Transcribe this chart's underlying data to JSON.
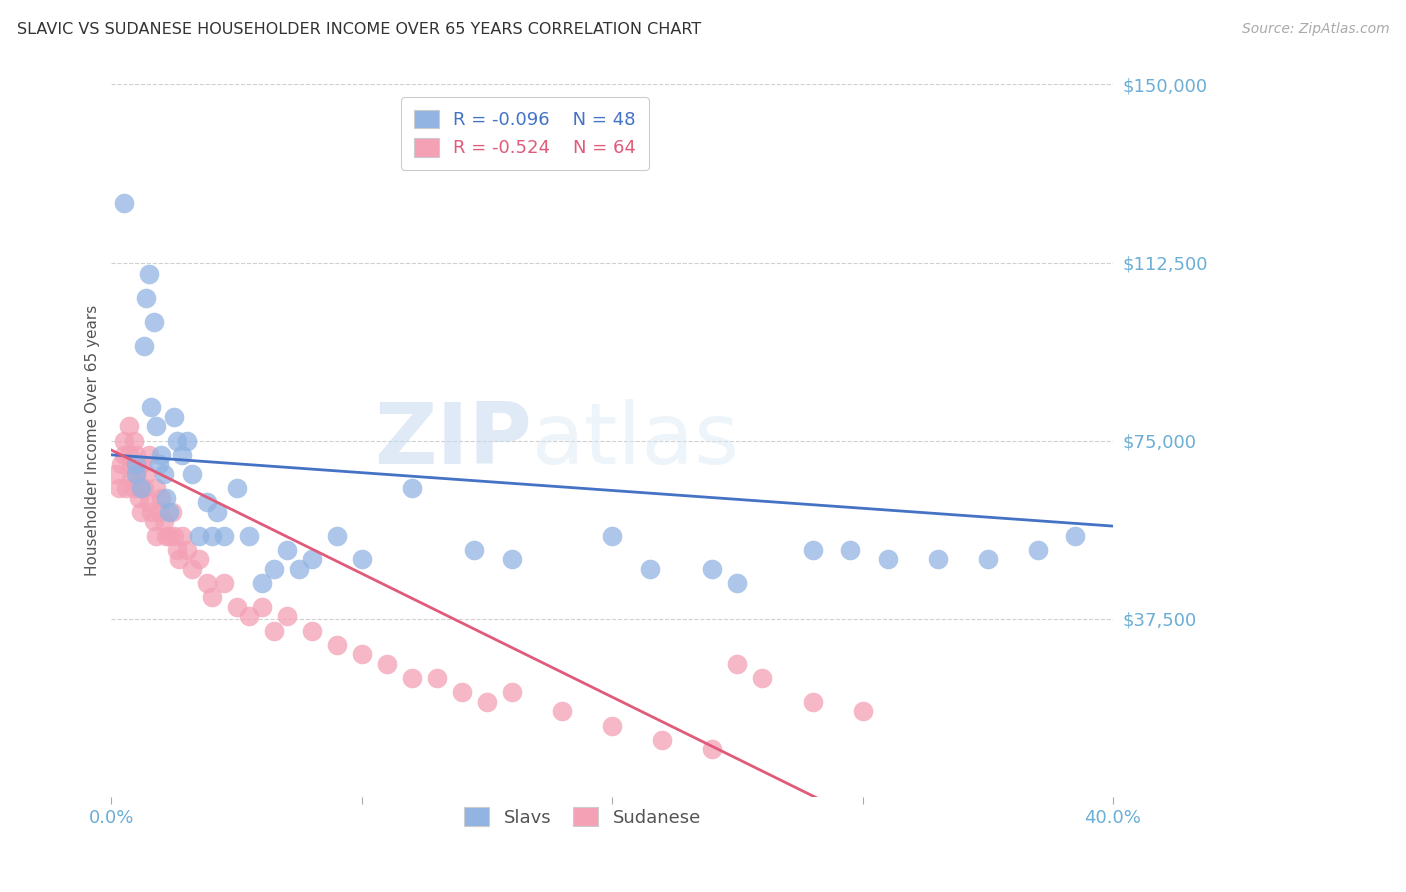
{
  "title": "SLAVIC VS SUDANESE HOUSEHOLDER INCOME OVER 65 YEARS CORRELATION CHART",
  "source": "Source: ZipAtlas.com",
  "ylabel": "Householder Income Over 65 years",
  "xlim": [
    0.0,
    0.4
  ],
  "ylim": [
    0,
    150000
  ],
  "yticks": [
    0,
    37500,
    75000,
    112500,
    150000
  ],
  "ytick_labels": [
    "",
    "$37,500",
    "$75,000",
    "$112,500",
    "$150,000"
  ],
  "xticks": [
    0.0,
    0.1,
    0.2,
    0.3,
    0.4
  ],
  "xtick_labels": [
    "0.0%",
    "",
    "",
    "",
    "40.0%"
  ],
  "slavs_color": "#92b4e3",
  "sudanese_color": "#f4a0b5",
  "watermark": "ZIPatlas",
  "slavs_x": [
    0.005,
    0.01,
    0.01,
    0.012,
    0.013,
    0.014,
    0.015,
    0.016,
    0.017,
    0.018,
    0.019,
    0.02,
    0.021,
    0.022,
    0.023,
    0.025,
    0.026,
    0.028,
    0.03,
    0.032,
    0.035,
    0.038,
    0.04,
    0.042,
    0.045,
    0.05,
    0.055,
    0.06,
    0.065,
    0.07,
    0.075,
    0.08,
    0.09,
    0.1,
    0.12,
    0.145,
    0.16,
    0.2,
    0.215,
    0.24,
    0.25,
    0.28,
    0.295,
    0.31,
    0.33,
    0.35,
    0.37,
    0.385
  ],
  "slavs_y": [
    125000,
    70000,
    68000,
    65000,
    95000,
    105000,
    110000,
    82000,
    100000,
    78000,
    70000,
    72000,
    68000,
    63000,
    60000,
    80000,
    75000,
    72000,
    75000,
    68000,
    55000,
    62000,
    55000,
    60000,
    55000,
    65000,
    55000,
    45000,
    48000,
    52000,
    48000,
    50000,
    55000,
    50000,
    65000,
    52000,
    50000,
    55000,
    48000,
    48000,
    45000,
    52000,
    52000,
    50000,
    50000,
    50000,
    52000,
    55000
  ],
  "sudanese_x": [
    0.002,
    0.003,
    0.004,
    0.005,
    0.005,
    0.006,
    0.007,
    0.007,
    0.008,
    0.008,
    0.009,
    0.009,
    0.01,
    0.01,
    0.011,
    0.011,
    0.012,
    0.012,
    0.013,
    0.014,
    0.015,
    0.015,
    0.016,
    0.017,
    0.018,
    0.018,
    0.019,
    0.02,
    0.021,
    0.022,
    0.023,
    0.024,
    0.025,
    0.026,
    0.027,
    0.028,
    0.03,
    0.032,
    0.035,
    0.038,
    0.04,
    0.045,
    0.05,
    0.055,
    0.06,
    0.065,
    0.07,
    0.08,
    0.09,
    0.1,
    0.11,
    0.12,
    0.13,
    0.14,
    0.15,
    0.16,
    0.18,
    0.2,
    0.22,
    0.24,
    0.25,
    0.26,
    0.28,
    0.3
  ],
  "sudanese_y": [
    68000,
    65000,
    70000,
    75000,
    72000,
    65000,
    78000,
    72000,
    70000,
    67000,
    75000,
    65000,
    68000,
    72000,
    65000,
    63000,
    70000,
    60000,
    65000,
    68000,
    72000,
    62000,
    60000,
    58000,
    65000,
    55000,
    60000,
    63000,
    58000,
    55000,
    55000,
    60000,
    55000,
    52000,
    50000,
    55000,
    52000,
    48000,
    50000,
    45000,
    42000,
    45000,
    40000,
    38000,
    40000,
    35000,
    38000,
    35000,
    32000,
    30000,
    28000,
    25000,
    25000,
    22000,
    20000,
    22000,
    18000,
    15000,
    12000,
    10000,
    28000,
    25000,
    20000,
    18000
  ],
  "title_color": "#333333",
  "tick_color": "#6baed6",
  "grid_color": "#d0d0d0",
  "slavs_line_color": "#4472c4",
  "sudanese_line_color": "#e05a7a",
  "background_color": "#ffffff",
  "legend_R_slavs": "R = -0.096",
  "legend_N_slavs": "N = 48",
  "legend_R_sudanese": "R = -0.524",
  "legend_N_sudanese": "N = 64"
}
